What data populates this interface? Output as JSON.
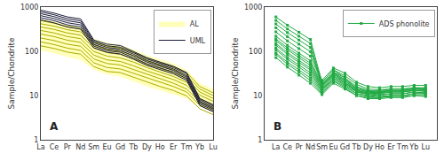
{
  "chart_data": [
    {
      "type": "line",
      "categories": [
        "La",
        "Ce",
        "Pr",
        "Nd",
        "Sm",
        "Eu",
        "Gd",
        "Tb",
        "Dy",
        "Ho",
        "Er",
        "Tm",
        "Yb",
        "Lu"
      ],
      "ylabel": "Sample/Chondrite",
      "log": "y",
      "ylim": [
        1,
        1000
      ],
      "yticks": [
        1,
        10,
        100,
        1000
      ],
      "grid": false,
      "legend": "upper right",
      "annotations": [
        "A"
      ],
      "series": [
        {
          "name": "AL",
          "type": "band",
          "color": "#ffffbb",
          "upper": [
            530,
            470,
            395,
            360,
            195,
            155,
            140,
            110,
            82,
            67,
            53,
            38,
            19,
            14
          ],
          "lower": [
            105,
            90,
            74,
            64,
            38,
            30,
            27,
            21,
            16,
            13,
            10.5,
            8.5,
            5.8,
            4.5
          ]
        },
        {
          "type": "line",
          "color": "#aaaa00",
          "values": [
            [
              490,
              432,
              362,
              323,
              165,
              130,
              118,
              94,
              70,
              56,
              45,
              33,
              16,
              11.5
            ],
            [
              420,
              370,
              308,
              275,
              140,
              110,
              100,
              80,
              60,
              48,
              38,
              28,
              14,
              10
            ],
            [
              355,
              313,
              260,
              232,
              118,
              93,
              85,
              68,
              51,
              41,
              33,
              24,
              12,
              8.6
            ],
            [
              296,
              260,
              216,
              193,
              99,
              78,
              71,
              57,
              43,
              34,
              27,
              20,
              10.2,
              7.4
            ],
            [
              245,
              215,
              178,
              159,
              82,
              64,
              59,
              47,
              36,
              29,
              23,
              17,
              8.6,
              6.2
            ],
            [
              200,
              175,
              145,
              130,
              67,
              53,
              49,
              39,
              30,
              24,
              19,
              14,
              7.2,
              5.2
            ],
            [
              163,
              142,
              118,
              105,
              55,
              43,
              40,
              32,
              25,
              20,
              16,
              12,
              6.0,
              4.4
            ],
            [
              133,
              116,
              96,
              86,
              45,
              35,
              33,
              26,
              20,
              16,
              13,
              9.8,
              5.0,
              3.7
            ]
          ]
        },
        {
          "name": "UML",
          "type": "line",
          "color": "#1a1a3a",
          "values": [
            [
              850,
              730,
              600,
              540,
              180,
              145,
              135,
              100,
              72,
              57,
              46,
              33,
              8.5,
              6.2
            ],
            [
              780,
              670,
              545,
              490,
              168,
              133,
              124,
              93,
              67,
              53,
              43,
              31,
              8.0,
              5.8
            ],
            [
              710,
              608,
              492,
              442,
              155,
              122,
              113,
              86,
              62,
              49,
              40,
              28,
              7.4,
              5.4
            ],
            [
              640,
              548,
              442,
              397,
              143,
              113,
              104,
              79,
              57,
              46,
              37,
              26,
              6.9,
              5.0
            ],
            [
              575,
              492,
              396,
              355,
              131,
              103,
              95,
              72,
              52,
              42,
              34,
              24,
              6.4,
              4.7
            ],
            [
              515,
              440,
              354,
              317,
              120,
              95,
              87,
              66,
              48,
              38,
              31,
              22,
              5.9,
              4.3
            ]
          ]
        }
      ]
    },
    {
      "type": "line",
      "categories": [
        "La",
        "Ce",
        "Pr",
        "Nd",
        "Sm",
        "Eu",
        "Gd",
        "Tb",
        "Dy",
        "Ho",
        "Er",
        "Tm",
        "Yb",
        "Lu"
      ],
      "ylabel": "Sample/Chondrite",
      "log": "y",
      "ylim": [
        1,
        1000
      ],
      "yticks": [
        1,
        10,
        100,
        1000
      ],
      "grid": false,
      "legend": "upper right",
      "annotations": [
        "B"
      ],
      "series": [
        {
          "name": "ADS phonolite",
          "type": "line",
          "color": "#22aa44",
          "marker": "square",
          "values": [
            [
              600,
              390,
              270,
              185,
              20,
              38,
              25,
              14,
              12,
              13,
              14,
              14,
              15,
              15
            ],
            [
              500,
              320,
              220,
              150,
              18,
              34,
              22,
              13,
              11.5,
              12,
              13,
              13,
              14,
              14
            ],
            [
              415,
              265,
              180,
              122,
              16,
              31,
              20,
              12,
              11,
              11.5,
              12.5,
              12.5,
              13,
              13
            ],
            [
              340,
              215,
              145,
              98,
              22,
              42,
              32,
              20,
              16,
              15,
              16,
              16,
              17,
              17
            ],
            [
              275,
              172,
              115,
              78,
              20,
              38,
              28,
              18,
              14,
              13.5,
              14,
              14,
              15,
              14.5
            ],
            [
              220,
              137,
              91,
              61,
              18,
              34,
              25,
              16,
              13,
              12.5,
              13,
              13,
              14,
              13.5
            ],
            [
              175,
              108,
              72,
              48,
              16,
              30,
              22,
              14,
              12,
              11.5,
              12,
              12,
              13,
              12.5
            ],
            [
              138,
              85,
              56,
              38,
              14,
              27,
              19,
              12.5,
              11,
              10.5,
              11,
              11,
              12,
              11.5
            ],
            [
              108,
              66,
              44,
              29,
              12.5,
              24,
              17,
              11,
              10,
              9.5,
              10,
              10,
              11,
              11
            ],
            [
              85,
              51,
              34,
              22,
              11,
              21,
              15,
              10,
              9,
              9,
              9.5,
              9.5,
              10,
              10
            ],
            [
              190,
              120,
              80,
              54,
              17,
              32,
              23,
              15,
              12.5,
              12,
              13,
              13,
              14,
              13.5
            ],
            [
              150,
              94,
              62,
              42,
              15,
              28,
              20,
              13,
              11.5,
              11,
              12,
              12,
              13,
              12.5
            ],
            [
              118,
              73,
              49,
              33,
              13.5,
              25,
              18,
              12,
              10.5,
              10,
              11,
              11,
              12,
              11.5
            ],
            [
              92,
              57,
              38,
              25,
              12,
              22,
              16,
              11,
              9.5,
              9,
              10,
              10,
              11,
              11
            ],
            [
              72,
              44,
              29,
              19,
              10.5,
              19,
              14,
              10,
              8.5,
              8.5,
              9,
              9,
              10,
              9.5
            ]
          ]
        }
      ]
    }
  ]
}
